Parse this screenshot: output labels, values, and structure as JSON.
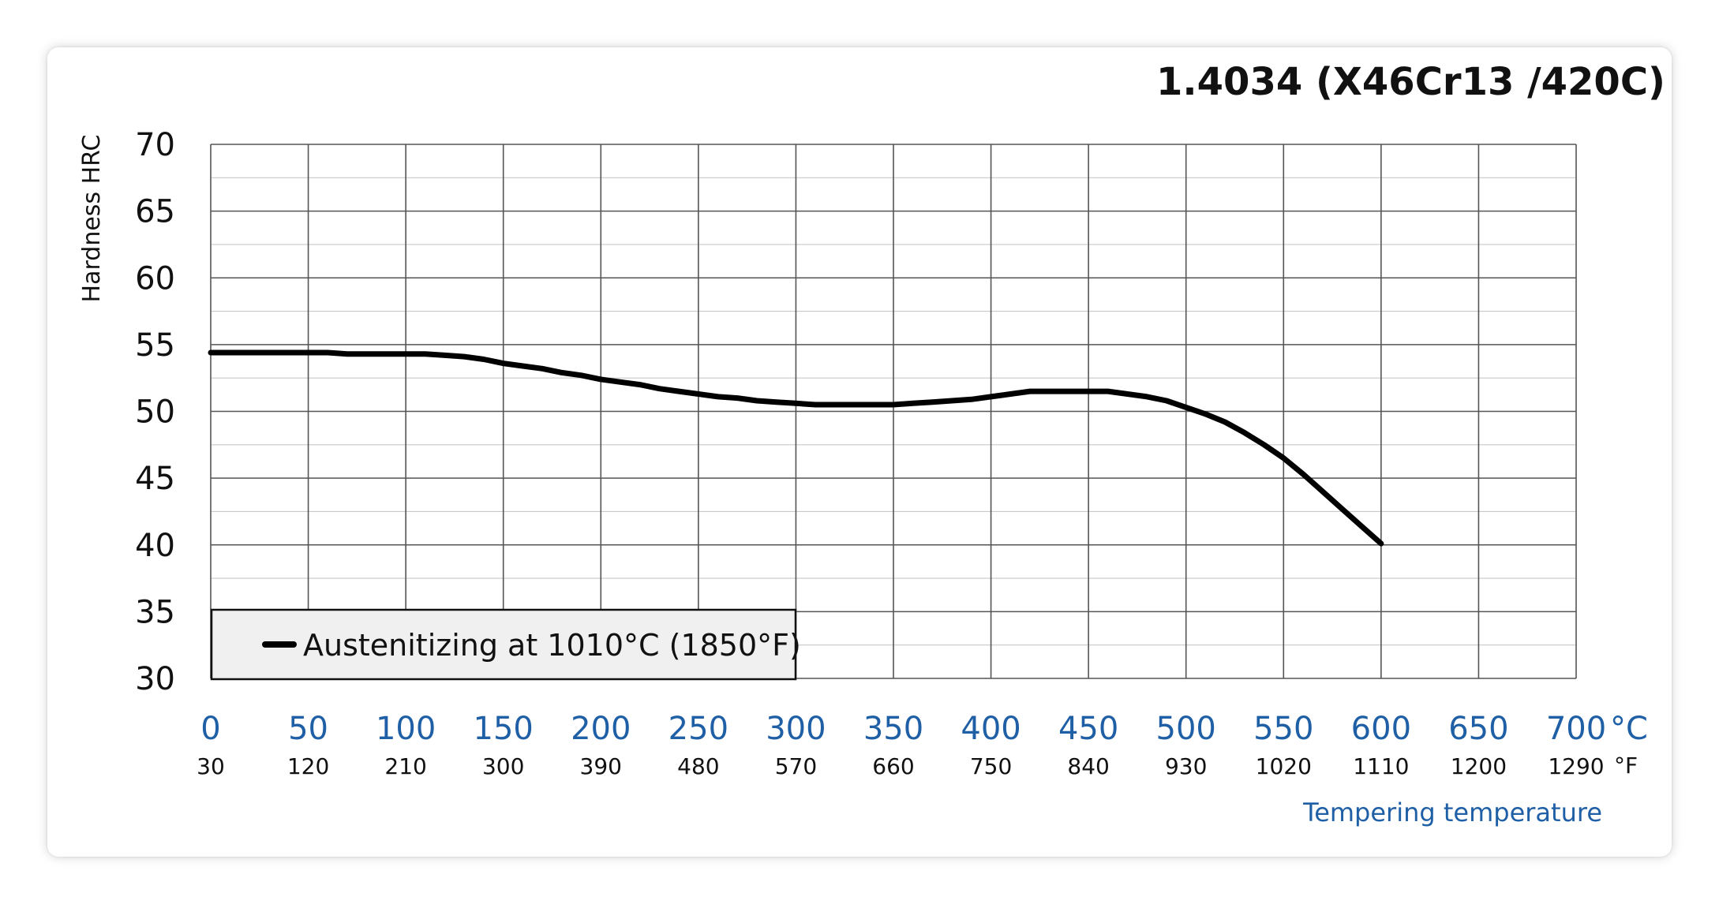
{
  "chart_data": {
    "type": "line",
    "title": "1.4034 (X46Cr13 /420C)",
    "ylabel": "Hardness HRC",
    "xlabel": "Tempering temperature",
    "x_unit": "°C",
    "x2_unit": "°F",
    "xlim": [
      0,
      700
    ],
    "ylim": [
      30,
      70
    ],
    "x_ticks": [
      "0",
      "50",
      "100",
      "150",
      "200",
      "250",
      "300",
      "350",
      "400",
      "450",
      "500",
      "550",
      "600",
      "650",
      "700"
    ],
    "x2_ticks": [
      "30",
      "120",
      "210",
      "300",
      "390",
      "480",
      "570",
      "660",
      "750",
      "840",
      "930",
      "1020",
      "1110",
      "1200",
      "1290"
    ],
    "y_ticks": [
      "30",
      "35",
      "40",
      "45",
      "50",
      "55",
      "60",
      "65",
      "70"
    ],
    "grid": true,
    "legend_position": "bottom-left",
    "colors": {
      "series": "#000000",
      "x_axis_text": "#1f5fa6",
      "legend_bg": "#f0f0f0"
    },
    "series": [
      {
        "name": "Austenitizing at 1010°C (1850°F)",
        "x": [
          0,
          50,
          60,
          70,
          80,
          100,
          110,
          120,
          130,
          140,
          150,
          160,
          170,
          180,
          190,
          200,
          210,
          220,
          230,
          240,
          250,
          260,
          270,
          280,
          290,
          300,
          310,
          320,
          330,
          340,
          350,
          360,
          370,
          380,
          390,
          400,
          410,
          420,
          430,
          440,
          450,
          460,
          470,
          480,
          490,
          500,
          510,
          520,
          530,
          540,
          550,
          560,
          570,
          580,
          590,
          600
        ],
        "y": [
          54.4,
          54.4,
          54.4,
          54.3,
          54.3,
          54.3,
          54.3,
          54.2,
          54.1,
          53.9,
          53.6,
          53.4,
          53.2,
          52.9,
          52.7,
          52.4,
          52.2,
          52.0,
          51.7,
          51.5,
          51.3,
          51.1,
          51.0,
          50.8,
          50.7,
          50.6,
          50.5,
          50.5,
          50.5,
          50.5,
          50.5,
          50.6,
          50.7,
          50.8,
          50.9,
          51.1,
          51.3,
          51.5,
          51.5,
          51.5,
          51.5,
          51.5,
          51.3,
          51.1,
          50.8,
          50.3,
          49.8,
          49.2,
          48.4,
          47.5,
          46.5,
          45.3,
          44.0,
          42.7,
          41.4,
          40.1
        ]
      }
    ]
  }
}
